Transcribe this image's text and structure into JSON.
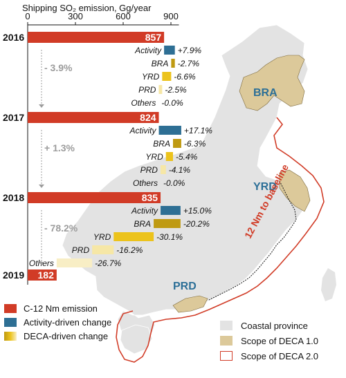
{
  "chart_data": {
    "type": "bar",
    "title": "Shipping SO₂ emission, Gg/year",
    "xlim": [
      0,
      950
    ],
    "xticks": [
      0,
      300,
      600,
      900
    ],
    "years": [
      {
        "year": "2016",
        "total": 857,
        "total_label": "857",
        "trend_label": "- 3.9%",
        "changes": [
          {
            "name": "Activity",
            "value": 67.7,
            "label": "+7.9%",
            "kind": "activity"
          },
          {
            "name": "BRA",
            "value": -23.1,
            "label": "-2.7%",
            "kind": "bra"
          },
          {
            "name": "YRD",
            "value": -56.6,
            "label": "-6.6%",
            "kind": "yrd"
          },
          {
            "name": "PRD",
            "value": -21.4,
            "label": "-2.5%",
            "kind": "prd"
          },
          {
            "name": "Others",
            "value": 0,
            "label": "-0.0%",
            "kind": "others"
          }
        ]
      },
      {
        "year": "2017",
        "total": 824,
        "total_label": "824",
        "trend_label": "+ 1.3%",
        "changes": [
          {
            "name": "Activity",
            "value": 140.9,
            "label": "+17.1%",
            "kind": "activity"
          },
          {
            "name": "BRA",
            "value": -51.9,
            "label": "-6.3%",
            "kind": "bra"
          },
          {
            "name": "YRD",
            "value": -44.5,
            "label": "-5.4%",
            "kind": "yrd"
          },
          {
            "name": "PRD",
            "value": -33.8,
            "label": "-4.1%",
            "kind": "prd"
          },
          {
            "name": "Others",
            "value": 0,
            "label": "-0.0%",
            "kind": "others"
          }
        ]
      },
      {
        "year": "2018",
        "total": 835,
        "total_label": "835",
        "trend_label": "- 78.2%",
        "changes": [
          {
            "name": "Activity",
            "value": 125.3,
            "label": "+15.0%",
            "kind": "activity"
          },
          {
            "name": "BRA",
            "value": -168.7,
            "label": "-20.2%",
            "kind": "bra"
          },
          {
            "name": "YRD",
            "value": -251.3,
            "label": "-30.1%",
            "kind": "yrd"
          },
          {
            "name": "PRD",
            "value": -135.3,
            "label": "-16.2%",
            "kind": "prd"
          },
          {
            "name": "Others",
            "value": -222.9,
            "label": "-26.7%",
            "kind": "others"
          }
        ]
      },
      {
        "year": "2019",
        "total": 182,
        "total_label": "182",
        "changes": []
      }
    ],
    "legend": [
      {
        "label": "C-12 Nm emission",
        "kind": "total"
      },
      {
        "label": "Activity-driven change",
        "kind": "activity"
      },
      {
        "label": "DECA-driven change",
        "kind": "deca"
      }
    ],
    "map_legend": [
      {
        "label": "Coastal province",
        "kind": "province"
      },
      {
        "label": "Scope of DECA 1.0",
        "kind": "deca1"
      },
      {
        "label": "Scope of DECA 2.0",
        "kind": "deca2"
      }
    ],
    "map_labels": {
      "bra": "BRA",
      "yrd": "YRD",
      "prd": "PRD",
      "baseline": "12 Nm to baseline"
    }
  },
  "colors": {
    "total": "#d13b26",
    "activity": "#2e6f94",
    "bra": "#bf9a12",
    "yrd": "#ecc31c",
    "prd": "#f6e7a6",
    "others": "#f8eec5",
    "province": "#e3e3e3",
    "deca1": "#dcc99a",
    "deca2": "#d13b26",
    "region_text": "#2c6f97",
    "trend_text": "#9c9c9c"
  }
}
